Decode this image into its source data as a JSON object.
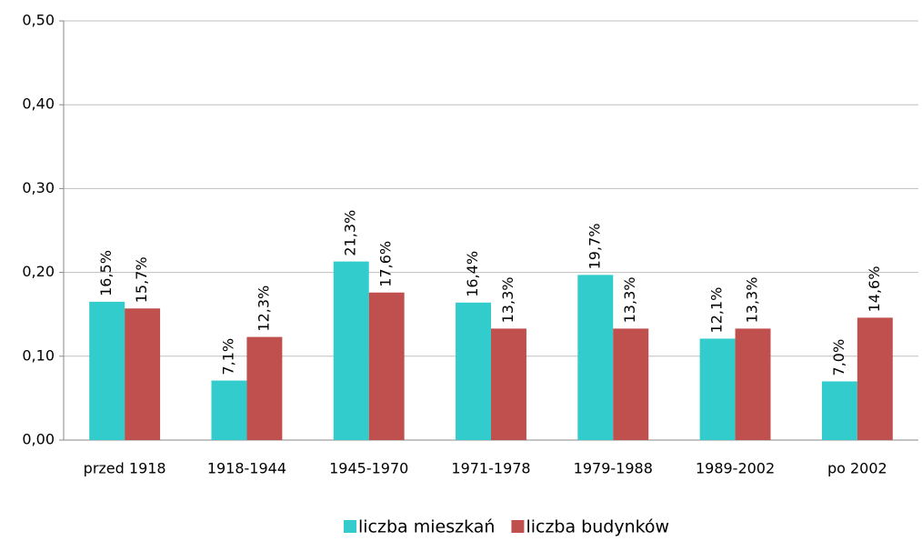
{
  "chart_data": {
    "type": "bar",
    "categories": [
      "przed 1918",
      "1918-1944",
      "1945-1970",
      "1971-1978",
      "1979-1988",
      "1989-2002",
      "po 2002"
    ],
    "series": [
      {
        "name": "liczba mieszkań",
        "color": "#33cccc",
        "values": [
          0.165,
          0.071,
          0.213,
          0.164,
          0.197,
          0.121,
          0.07
        ],
        "value_labels": [
          "16,5%",
          "7,1%",
          "21,3%",
          "16,4%",
          "19,7%",
          "12,1%",
          "7,0%"
        ]
      },
      {
        "name": "liczba budynków",
        "color": "#c0504d",
        "values": [
          0.157,
          0.123,
          0.176,
          0.133,
          0.133,
          0.133,
          0.146
        ],
        "value_labels": [
          "15,7%",
          "12,3%",
          "17,6%",
          "13,3%",
          "13,3%",
          "13,3%",
          "14,6%"
        ]
      }
    ],
    "ylim": [
      0,
      0.5
    ],
    "yticks": [
      {
        "value": 0,
        "label": "0,00"
      },
      {
        "value": 0.1,
        "label": "0,10"
      },
      {
        "value": 0.2,
        "label": "0,20"
      },
      {
        "value": 0.3,
        "label": "0,30"
      },
      {
        "value": 0.4,
        "label": "0,40"
      },
      {
        "value": 0.5,
        "label": "0,50"
      }
    ],
    "grid": true,
    "legend": "bottom"
  }
}
